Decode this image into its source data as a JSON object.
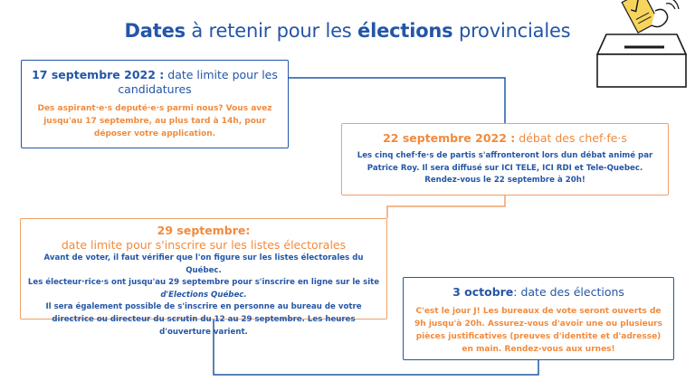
{
  "title": {
    "part1": "Dates",
    "part2": " à retenir pour les ",
    "part3": "élections",
    "part4": " provinciales"
  },
  "box1": {
    "date": "17 septembre 2022 :",
    "label": " date limite pour les candidatures",
    "body": "Des  aspirant·e·s deputé·e·s parmi nous? Vous avez jusqu'au 17 septembre, au plus tard à 14h, pour déposer votre application."
  },
  "box2": {
    "date": "22 septembre 2022 :",
    "label": " débat des chef·fe·s",
    "body_part1": "Les cinq chef·fe·s de partis s'affronteront lors dun débat animé par Patrice Roy. Il sera diffusé sur ",
    "body_part2": "ICI TELE, ICI RDI",
    "body_part3": " et Tele-Quebec. Rendez-vous le 22 septembre à 20h!"
  },
  "box3": {
    "date": "29 septembre:",
    "label": "date limite pour s'inscrire sur les listes électorales",
    "line1": "Avant de  voter, il faut vérifier que l'on figure sur les listes électorales du Québec.",
    "line2": "Les électeur·rice·s ont jusqu'au 29 septembre pour s'inscrire en ligne sur le site",
    "line3": "d'Elections Québec.",
    "line4": "Il sera également possible de s'inscrire en personne au bureau de votre directrice ou directeur du scrutin du 12 au 29 septembre. Les heures d'ouverture varient."
  },
  "box4": {
    "date": "3 octobre",
    "label": ": date des élections",
    "body": "C'est le jour J! Les bureaux de vote seront ouverts de 9h jusqu'à 20h. Assurez-vous d'avoir une ou plusieurs pièces justificatives (preuves d'identite et d'adresse) en main. Rendez-vous aux urnes!"
  },
  "colors": {
    "blue": "#2456a6",
    "orange": "#f28a3c",
    "border_orange": "#f0a068",
    "ballot_yellow": "#f6d55c"
  },
  "icons": {
    "ballot": "ballot-box-icon"
  }
}
